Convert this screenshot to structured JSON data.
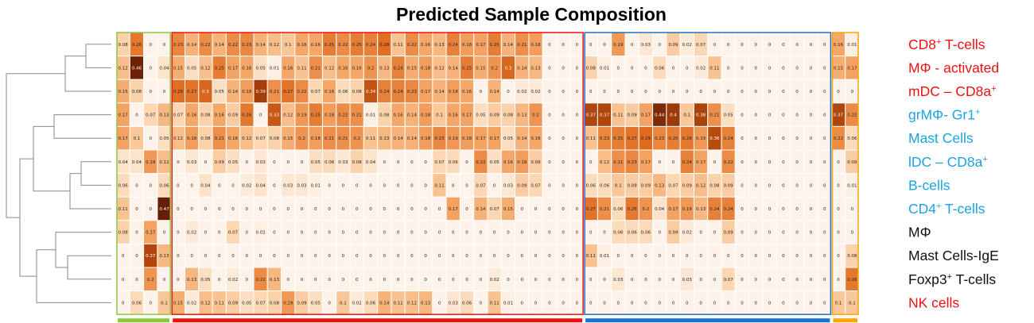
{
  "chart_data": {
    "type": "heatmap",
    "title": "Predicted Sample Composition",
    "row_labels": [
      {
        "parts": [
          [
            "CD8",
            ""
          ],
          [
            "+",
            "sup"
          ],
          [
            " T-cells",
            ""
          ]
        ],
        "color": "#ee1111"
      },
      {
        "parts": [
          [
            "MΦ - activated",
            ""
          ]
        ],
        "color": "#ee1111"
      },
      {
        "parts": [
          [
            "mDC – CD8a",
            ""
          ],
          [
            "+",
            "sup"
          ]
        ],
        "color": "#ee1111"
      },
      {
        "parts": [
          [
            "grMΦ- Gr1",
            ""
          ],
          [
            "+",
            "sup"
          ]
        ],
        "color": "#1aa3e0"
      },
      {
        "parts": [
          [
            "Mast Cells",
            ""
          ]
        ],
        "color": "#1aa3e0"
      },
      {
        "parts": [
          [
            "lDC – CD8a",
            ""
          ],
          [
            "+",
            "sup"
          ]
        ],
        "color": "#1aa3e0"
      },
      {
        "parts": [
          [
            "B-cells",
            ""
          ]
        ],
        "color": "#1aa3e0"
      },
      {
        "parts": [
          [
            "CD4",
            ""
          ],
          [
            "+",
            "sup"
          ],
          [
            " T-cells",
            ""
          ]
        ],
        "color": "#1aa3e0"
      },
      {
        "parts": [
          [
            "MΦ",
            ""
          ]
        ],
        "color": "#111111"
      },
      {
        "parts": [
          [
            "Mast Cells-IgE",
            ""
          ]
        ],
        "color": "#111111"
      },
      {
        "parts": [
          [
            "Foxp3",
            ""
          ],
          [
            "+",
            "sup"
          ],
          [
            " T-cells",
            ""
          ]
        ],
        "color": "#111111"
      },
      {
        "parts": [
          [
            "NK cells",
            ""
          ]
        ],
        "color": "#ee1111"
      }
    ],
    "groups": [
      {
        "name": "green",
        "start": 0,
        "end": 3,
        "color": "#8dc63f"
      },
      {
        "name": "red",
        "start": 4,
        "end": 33,
        "color": "#ee1111"
      },
      {
        "name": "blue",
        "start": 34,
        "end": 51,
        "color": "#1a73c8"
      },
      {
        "name": "yellow",
        "start": 52,
        "end": 53,
        "color": "#ffa500"
      }
    ],
    "color_scale": {
      "min": 0,
      "max": 0.48,
      "low": "#fdf3ea",
      "high": "#5e1a05"
    },
    "values": [
      [
        0.08,
        0.26,
        0,
        0,
        0.23,
        0.14,
        0.22,
        0.14,
        0.22,
        0.23,
        0.14,
        0.12,
        0.1,
        0.16,
        0.16,
        0.25,
        0.22,
        0.25,
        0.24,
        0.28,
        0.11,
        0.22,
        0.16,
        0.13,
        0.24,
        0.18,
        0.17,
        0.25,
        0.14,
        0.21,
        0.18,
        0,
        0,
        0,
        0,
        0,
        0.19,
        0,
        0.03,
        0,
        0.09,
        0.02,
        0.07,
        0,
        0,
        0,
        0,
        0,
        0,
        0,
        0,
        0,
        0.16,
        0.01
      ],
      [
        0.12,
        0.46,
        0,
        0.04,
        0.15,
        0.05,
        0.12,
        0.25,
        0.17,
        0.16,
        0.05,
        0.01,
        0.16,
        0.11,
        0.21,
        0.12,
        0.16,
        0.16,
        0.2,
        0.13,
        0.24,
        0.15,
        0.18,
        0.12,
        0.14,
        0.25,
        0.15,
        0.2,
        0.3,
        0.14,
        0.13,
        0,
        0,
        0,
        0.08,
        0.01,
        0,
        0,
        0,
        0.06,
        0,
        0,
        0.02,
        0.11,
        0,
        0,
        0,
        0,
        0,
        0,
        0,
        0,
        0.15,
        0.17
      ],
      [
        0.15,
        0.08,
        0,
        0,
        0.28,
        0.27,
        0.3,
        0.05,
        0.14,
        0.18,
        0.39,
        0.21,
        0.27,
        0.22,
        0.07,
        0.16,
        0.06,
        0.08,
        0.34,
        0.24,
        0.24,
        0.23,
        0.17,
        0.14,
        0.18,
        0.16,
        0,
        0.14,
        0,
        0.02,
        0.02,
        0,
        0,
        0,
        0,
        0,
        0,
        0,
        0,
        0,
        0,
        0,
        0,
        0,
        0,
        0,
        0,
        0,
        0,
        0,
        0,
        0,
        0,
        0
      ],
      [
        0.17,
        0,
        0.07,
        0.13,
        0.07,
        0.16,
        0.08,
        0.16,
        0.09,
        0.26,
        0,
        0.33,
        0.12,
        0.19,
        0.25,
        0.18,
        0.22,
        0.21,
        0.01,
        0.08,
        0.16,
        0.14,
        0.18,
        0.1,
        0.16,
        0.17,
        0.05,
        0.09,
        0.08,
        0.13,
        0.2,
        0,
        0,
        0,
        0.37,
        0.37,
        0.11,
        0.09,
        0.17,
        0.44,
        0.4,
        0.1,
        0.38,
        0.21,
        0.05,
        0,
        0,
        0,
        0,
        0,
        0,
        0,
        0.37,
        0.22
      ],
      [
        0.17,
        0.1,
        0,
        0.05,
        0.12,
        0.18,
        0.08,
        0.21,
        0.16,
        0.12,
        0.07,
        0.08,
        0.15,
        0.2,
        0.18,
        0.21,
        0.21,
        0.2,
        0.11,
        0.13,
        0.14,
        0.14,
        0.18,
        0.23,
        0.19,
        0.18,
        0.17,
        0.17,
        0.05,
        0.14,
        0.16,
        0,
        0,
        0,
        0.11,
        0.23,
        0.25,
        0.27,
        0.29,
        0.23,
        0.25,
        0.26,
        0.19,
        0.36,
        0.24,
        0,
        0,
        0,
        0,
        0,
        0,
        0,
        0.22,
        0.06
      ],
      [
        0.04,
        0.04,
        0.19,
        0.12,
        0,
        0.03,
        0,
        0.09,
        0.05,
        0,
        0.03,
        0,
        0,
        0,
        0.05,
        0.06,
        0.03,
        0.08,
        0.04,
        0,
        0,
        0,
        0,
        0.07,
        0.06,
        0,
        0.22,
        0.05,
        0.16,
        0.18,
        0.09,
        0,
        0,
        0,
        0,
        0.12,
        0.21,
        0.23,
        0.17,
        0,
        0,
        0.24,
        0.17,
        0,
        0.22,
        0,
        0,
        0,
        0,
        0,
        0,
        0,
        0,
        0.09
      ],
      [
        0.06,
        0,
        0,
        0.06,
        0,
        0,
        0.04,
        0,
        0,
        0.02,
        0.04,
        0,
        0.03,
        0.03,
        0.01,
        0,
        0,
        0,
        0,
        0,
        0,
        0,
        0,
        0.11,
        0,
        0,
        0.07,
        0,
        0.03,
        0.09,
        0.07,
        0,
        0,
        0,
        0.06,
        0.06,
        0.1,
        0.09,
        0.09,
        0.13,
        0.07,
        0.09,
        0.12,
        0.08,
        0.09,
        0,
        0,
        0,
        0,
        0,
        0,
        0,
        0,
        0.01
      ],
      [
        0.11,
        0,
        0,
        0.47,
        0,
        0,
        0,
        0,
        0,
        0,
        0,
        0,
        0,
        0,
        0,
        0,
        0,
        0,
        0,
        0,
        0,
        0,
        0,
        0,
        0.17,
        0,
        0.14,
        0.07,
        0.15,
        0,
        0,
        0,
        0,
        0,
        0.27,
        0.21,
        0.06,
        0.26,
        0.2,
        0.04,
        0.17,
        0.19,
        0.13,
        0.24,
        0.24,
        0,
        0,
        0,
        0,
        0,
        0,
        0,
        0,
        0
      ],
      [
        0.08,
        0,
        0.17,
        0,
        0,
        0.02,
        0,
        0,
        0.07,
        0,
        0.01,
        0,
        0,
        0,
        0,
        0,
        0,
        0,
        0,
        0,
        0,
        0,
        0,
        0,
        0,
        0,
        0,
        0,
        0,
        0,
        0,
        0,
        0,
        0,
        0,
        0,
        0.06,
        0.06,
        0.06,
        0,
        0.09,
        0.02,
        0,
        0,
        0.09,
        0,
        0,
        0,
        0,
        0,
        0,
        0,
        0,
        0
      ],
      [
        0,
        0,
        0.37,
        0.13,
        0,
        0,
        0,
        0,
        0,
        0,
        0,
        0,
        0,
        0,
        0,
        0,
        0,
        0,
        0,
        0,
        0,
        0,
        0,
        0,
        0,
        0,
        0,
        0,
        0,
        0,
        0,
        0,
        0,
        0,
        0.11,
        0.01,
        0,
        0,
        0,
        0,
        0,
        0,
        0,
        0,
        0,
        0,
        0,
        0,
        0,
        0,
        0,
        0,
        0,
        0.08
      ],
      [
        0,
        0,
        0.2,
        0,
        0,
        0.13,
        0.05,
        0,
        0.02,
        0,
        0.22,
        0.13,
        0,
        0,
        0,
        0,
        0,
        0,
        0,
        0,
        0,
        0,
        0,
        0,
        0,
        0,
        0,
        0.02,
        0,
        0,
        0,
        0,
        0,
        0,
        0,
        0,
        0.03,
        0,
        0,
        0,
        0,
        0.03,
        0,
        0,
        0.07,
        0,
        0,
        0,
        0,
        0,
        0,
        0,
        0,
        0.26
      ],
      [
        0,
        0.06,
        0,
        0.1,
        0.15,
        0.02,
        0.12,
        0.11,
        0.09,
        0.05,
        0.07,
        0.08,
        0.19,
        0.09,
        0.05,
        0,
        0.1,
        0.02,
        0.06,
        0.14,
        0.11,
        0.12,
        0.13,
        0,
        0.03,
        0.06,
        0,
        0.11,
        0.01,
        0,
        0,
        0,
        0,
        0,
        0,
        0,
        0,
        0,
        0,
        0,
        0,
        0,
        0,
        0,
        0,
        0,
        0,
        0,
        0,
        0,
        0,
        0,
        0.1,
        0.1
      ]
    ]
  }
}
